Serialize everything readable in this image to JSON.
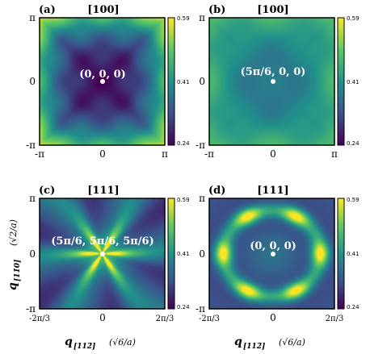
{
  "colors": {
    "viridis": [
      "#440154",
      "#3b528b",
      "#21918c",
      "#5ec962",
      "#fde725"
    ]
  },
  "chart_data": [
    {
      "type": "heatmap",
      "panel": "(a)",
      "title": "[100]",
      "point_label": "(0, 0, 0)",
      "x_ticks": [
        "-π",
        "0",
        "π"
      ],
      "y_ticks": [
        "-π",
        "0",
        "π"
      ],
      "colorbar": {
        "min": 0.24,
        "max": 0.59,
        "ticks": [
          "0.59",
          "0.41",
          "0.24"
        ]
      },
      "pattern": "center-minimum",
      "range": [
        0.24,
        0.59
      ]
    },
    {
      "type": "heatmap",
      "panel": "(b)",
      "title": "[100]",
      "point_label": "(5π/6, 0, 0)",
      "x_ticks": [
        "-π",
        "0",
        "π"
      ],
      "y_ticks": [
        "-π",
        "0",
        "π"
      ],
      "colorbar": {
        "min": 0.24,
        "max": 0.59,
        "ticks": [
          "0.59",
          "0.41",
          "0.24"
        ]
      },
      "pattern": "center-minimum-shallow",
      "range": [
        0.24,
        0.59
      ]
    },
    {
      "type": "heatmap",
      "panel": "(c)",
      "title": "[111]",
      "point_label": "(5π/6, 5π/6, 5π/6)",
      "x_ticks": [
        "-2π/3",
        "0",
        "2π/3"
      ],
      "y_ticks": [
        "-π",
        "0",
        "π"
      ],
      "colorbar": {
        "min": 0.24,
        "max": 0.59,
        "ticks": [
          "0.59",
          "0.41",
          "0.24"
        ]
      },
      "pattern": "six-fold-star",
      "range": [
        0.24,
        0.59
      ]
    },
    {
      "type": "heatmap",
      "panel": "(d)",
      "title": "[111]",
      "point_label": "(0, 0, 0)",
      "x_ticks": [
        "-2π/3",
        "0",
        "2π/3"
      ],
      "y_ticks": [
        "-π",
        "0",
        "π"
      ],
      "colorbar": {
        "min": 0.24,
        "max": 0.59,
        "ticks": [
          "0.59",
          "0.41",
          "0.24"
        ]
      },
      "pattern": "six-fold-ring",
      "range": [
        0.24,
        0.59
      ]
    }
  ],
  "axes": {
    "xlabel_main": "q",
    "xlabel_sub": "[112̄]",
    "xlabel_unit": "(√6/a)",
    "ylabel_main": "q",
    "ylabel_sub": "[11̄0]",
    "ylabel_unit": "(√2/a)"
  }
}
